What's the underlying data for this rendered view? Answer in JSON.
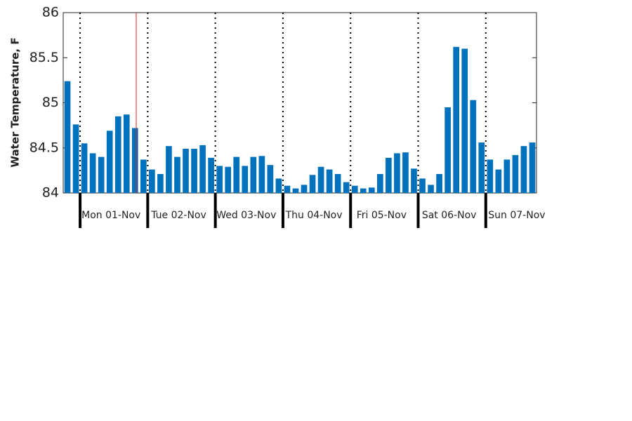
{
  "chart_data": {
    "type": "bar",
    "y_label": "Water Temperature, F",
    "categories": [
      null,
      null,
      "Mon 01-Nov",
      null,
      null,
      null,
      null,
      null,
      null,
      null,
      "Tue 02-Nov",
      null,
      null,
      null,
      null,
      null,
      null,
      null,
      "Wed 03-Nov",
      null,
      null,
      null,
      null,
      null,
      null,
      null,
      "Thu 04-Nov",
      null,
      null,
      null,
      null,
      null,
      null,
      null,
      "Fri 05-Nov",
      null,
      null,
      null,
      null,
      null,
      null,
      null,
      "Sat 06-Nov",
      null,
      null,
      null,
      null,
      null,
      null,
      null,
      "Sun 07-Nov",
      null,
      null,
      null,
      null,
      null
    ],
    "values": [
      85.24,
      84.76,
      84.55,
      84.44,
      84.4,
      84.69,
      84.85,
      84.87,
      84.72,
      84.37,
      84.26,
      84.21,
      84.52,
      84.4,
      84.49,
      84.49,
      84.53,
      84.39,
      84.3,
      84.29,
      84.4,
      84.3,
      84.4,
      84.41,
      84.31,
      84.16,
      84.08,
      84.05,
      84.09,
      84.2,
      84.29,
      84.26,
      84.21,
      84.12,
      84.08,
      84.05,
      84.06,
      84.21,
      84.39,
      84.44,
      84.45,
      84.27,
      84.16,
      84.09,
      84.21,
      84.95,
      85.62,
      85.6,
      85.03,
      84.56,
      84.37,
      84.26,
      84.37,
      84.42,
      84.52,
      84.56
    ],
    "color": "#0072bd",
    "ylim": [
      84,
      86
    ],
    "yticks": [
      84,
      84.5,
      85,
      85.5,
      86
    ],
    "grid": false
  }
}
